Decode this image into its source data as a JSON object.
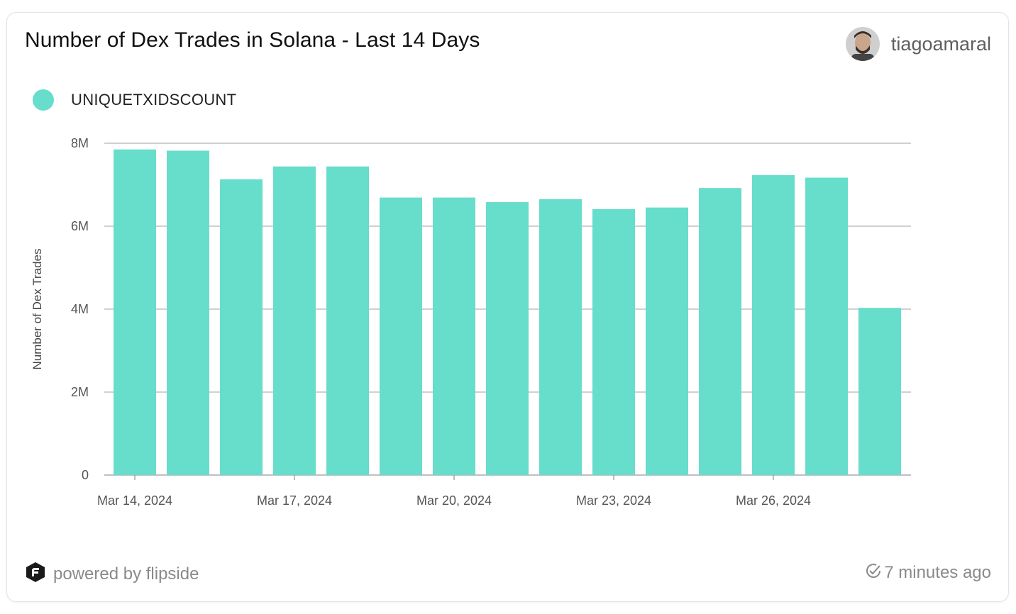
{
  "header": {
    "title": "Number of Dex Trades in Solana - Last 14 Days",
    "author": "tiagoamaral"
  },
  "legend": {
    "label": "UNIQUETXIDSCOUNT"
  },
  "footer": {
    "powered_by": "powered by flipside",
    "updated": "7 minutes ago"
  },
  "colors": {
    "bar": "#67ddcb",
    "grid": "#b5b5b5",
    "axis": "#9a9a9a"
  },
  "chart_data": {
    "type": "bar",
    "x": [
      "2024-03-14",
      "2024-03-15",
      "2024-03-16",
      "2024-03-17",
      "2024-03-18",
      "2024-03-19",
      "2024-03-20",
      "2024-03-21",
      "2024-03-22",
      "2024-03-23",
      "2024-03-24",
      "2024-03-25",
      "2024-03-26",
      "2024-03-27",
      "2024-03-28"
    ],
    "series": [
      {
        "name": "UNIQUETXIDSCOUNT",
        "values": [
          7850000,
          7820000,
          7130000,
          7440000,
          7440000,
          6690000,
          6690000,
          6580000,
          6650000,
          6410000,
          6450000,
          6920000,
          7230000,
          7170000,
          4030000
        ]
      }
    ],
    "ylabel": "Number of Dex Trades",
    "ylim": [
      0,
      8000000
    ],
    "yticks": [
      0,
      2000000,
      4000000,
      6000000,
      8000000
    ],
    "ytick_labels": [
      "0",
      "2M",
      "4M",
      "6M",
      "8M"
    ],
    "xtick_labels": [
      "Mar 14, 2024",
      "Mar 17, 2024",
      "Mar 20, 2024",
      "Mar 23, 2024",
      "Mar 26, 2024"
    ],
    "xtick_index": [
      0,
      3,
      6,
      9,
      12
    ],
    "grid": true,
    "legend_position": "top-left"
  }
}
